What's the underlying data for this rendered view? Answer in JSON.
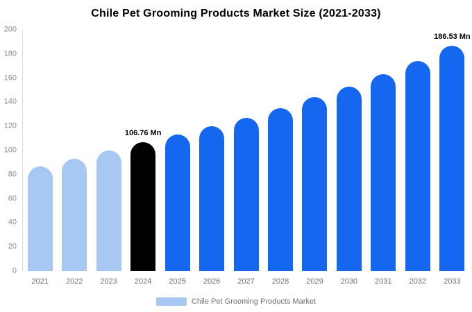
{
  "legend": {
    "label": "Chile Pet Grooming Products Market",
    "swatch_color": "#A6C8F2"
  },
  "colors": {
    "historical": "#A6C8F2",
    "base_year": "#000000",
    "forecast": "#1667F0",
    "axis_line": "#d9d9d9"
  },
  "chart_data": {
    "type": "bar",
    "title": "Chile Pet Grooming Products Market Size (2021-2033)",
    "categories": [
      "2021",
      "2022",
      "2023",
      "2024",
      "2025",
      "2026",
      "2027",
      "2028",
      "2029",
      "2030",
      "2031",
      "2032",
      "2033"
    ],
    "values": [
      87,
      93,
      100,
      106.76,
      113,
      120,
      127,
      135,
      144,
      153,
      163,
      174,
      186.53
    ],
    "unit": "Mn",
    "ylim": [
      0,
      200
    ],
    "yticks": [
      0,
      20,
      40,
      60,
      80,
      100,
      120,
      140,
      160,
      180,
      200
    ],
    "bar_colors": [
      "#A6C8F2",
      "#A6C8F2",
      "#A6C8F2",
      "#000000",
      "#1667F0",
      "#1667F0",
      "#1667F0",
      "#1667F0",
      "#1667F0",
      "#1667F0",
      "#1667F0",
      "#1667F0",
      "#1667F0"
    ],
    "annotations": [
      {
        "index": 3,
        "text": "106.76 Mn"
      },
      {
        "index": 12,
        "text": "186.53 Mn"
      }
    ],
    "grid": false,
    "legend_position": "bottom"
  }
}
